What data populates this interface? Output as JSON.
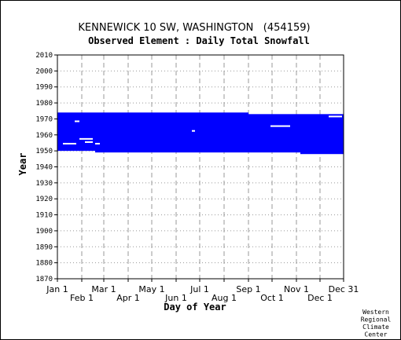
{
  "chart_data": {
    "type": "heatmap",
    "title": "KENNEWICK 10 SW, WASHINGTON   (454159)",
    "subtitle": "Observed Element : Daily Total Snowfall",
    "xlabel": "Day of Year",
    "ylabel": "Year",
    "x_ticks_top_row": [
      "Jan 1",
      "Mar 1",
      "May 1",
      "Jul 1",
      "Sep 1",
      "Nov 1",
      "Dec 31"
    ],
    "x_ticks_top_row_days": [
      1,
      60,
      121,
      182,
      244,
      305,
      365
    ],
    "x_ticks_bottom_row": [
      "Feb 1",
      "Apr 1",
      "Jun 1",
      "Aug 1",
      "Oct 1",
      "Dec 1"
    ],
    "x_ticks_bottom_row_days": [
      32,
      91,
      152,
      213,
      274,
      335
    ],
    "xlim": [
      1,
      365
    ],
    "y_ticks": [
      2010,
      2000,
      1990,
      1980,
      1970,
      1960,
      1950,
      1940,
      1930,
      1920,
      1910,
      1900,
      1890,
      1880,
      1870
    ],
    "ylim": [
      1870,
      2010
    ],
    "grid": true,
    "data_color": "#0000ff",
    "coverage": [
      {
        "x0": 1,
        "x1": 49,
        "y0": 1950,
        "y1": 1974
      },
      {
        "x0": 49,
        "x1": 244,
        "y0": 1949,
        "y1": 1974
      },
      {
        "x0": 244,
        "x1": 310,
        "y0": 1949,
        "y1": 1973
      },
      {
        "x0": 310,
        "x1": 365,
        "y0": 1948,
        "y1": 1973
      }
    ],
    "gaps": [
      {
        "x0": 8,
        "x1": 25,
        "y0": 1954,
        "y1": 1955
      },
      {
        "x0": 23,
        "x1": 29,
        "y0": 1968,
        "y1": 1969
      },
      {
        "x0": 29,
        "x1": 46,
        "y0": 1957,
        "y1": 1958
      },
      {
        "x0": 36,
        "x1": 46,
        "y0": 1955,
        "y1": 1956
      },
      {
        "x0": 49,
        "x1": 55,
        "y0": 1954,
        "y1": 1955
      },
      {
        "x0": 172,
        "x1": 176,
        "y0": 1962,
        "y1": 1963
      },
      {
        "x0": 272,
        "x1": 297,
        "y0": 1965,
        "y1": 1966
      },
      {
        "x0": 346,
        "x1": 363,
        "y0": 1971,
        "y1": 1972
      }
    ]
  },
  "credit": [
    "Western",
    "Regional",
    "Climate",
    "Center"
  ]
}
